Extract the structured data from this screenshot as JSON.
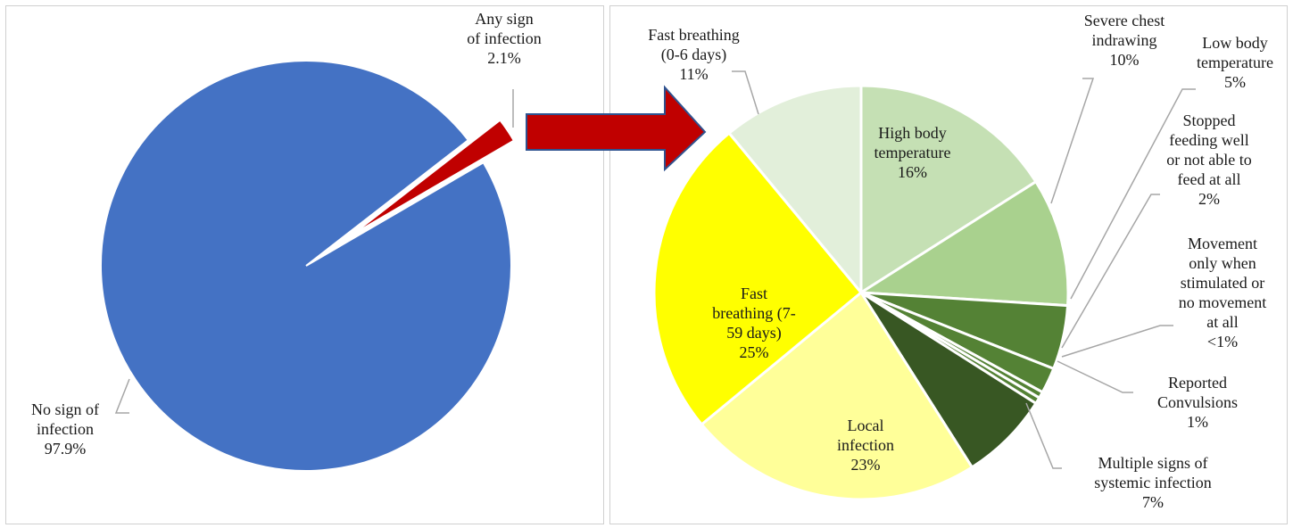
{
  "chart_data": [
    {
      "type": "pie",
      "slices": [
        {
          "label_lines": [
            "No sign of",
            "infection"
          ],
          "value_text": "97.9%",
          "value": 97.9,
          "color": "#4472c4"
        },
        {
          "label_lines": [
            "Any sign",
            "of infection"
          ],
          "value_text": "2.1%",
          "value": 2.1,
          "color": "#c00000"
        }
      ]
    },
    {
      "type": "pie",
      "slices": [
        {
          "label_lines": [
            "High body",
            "temperature"
          ],
          "value_text": "16%",
          "value": 16,
          "color": "#c5e0b4"
        },
        {
          "label_lines": [
            "Severe chest",
            "indrawing"
          ],
          "value_text": "10%",
          "value": 10,
          "color": "#a9d18e"
        },
        {
          "label_lines": [
            "Low body",
            "temperature"
          ],
          "value_text": "5%",
          "value": 5,
          "color": "#548235"
        },
        {
          "label_lines": [
            "Stopped",
            "feeding well",
            "or not able to",
            "feed at all"
          ],
          "value_text": "2%",
          "value": 2,
          "color": "#548235"
        },
        {
          "label_lines": [
            "Movement",
            "only when",
            "stimulated or",
            "no movement",
            "at all"
          ],
          "value_text": "<1%",
          "value": 0.5,
          "color": "#548235"
        },
        {
          "label_lines": [
            "Reported",
            "Convulsions"
          ],
          "value_text": "1%",
          "value": 0.5,
          "color": "#548235"
        },
        {
          "label_lines": [
            "Multiple signs of",
            "systemic infection"
          ],
          "value_text": "7%",
          "value": 7,
          "color": "#385723"
        },
        {
          "label_lines": [
            "Local",
            "infection"
          ],
          "value_text": "23%",
          "value": 23,
          "color": "#ffff99"
        },
        {
          "label_lines": [
            "Fast",
            "breathing (7-",
            "59 days)"
          ],
          "value_text": "25%",
          "value": 25,
          "color": "#ffff00"
        },
        {
          "label_lines": [
            "Fast breathing",
            "(0-6 days)"
          ],
          "value_text": "11%",
          "value": 11,
          "color": "#e2efda"
        }
      ]
    }
  ],
  "colors": {
    "arrow": "#c00000",
    "arrow_stroke": "#2f528f",
    "leader": "#a6a6a6"
  }
}
